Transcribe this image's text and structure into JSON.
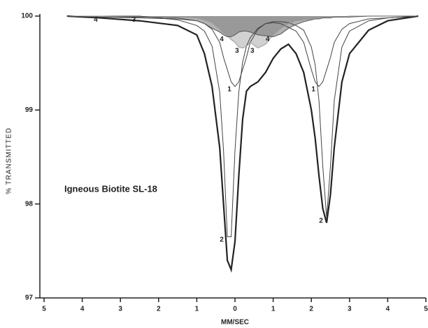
{
  "chart_data": {
    "type": "line",
    "annotation": "Igneous Biotite SL-18",
    "xlabel": "MM/SEC",
    "ylabel": "% TRANSMITTED",
    "x": [
      -4.4,
      -3.5,
      -2.5,
      -1.5,
      -1.0,
      -0.8,
      -0.6,
      -0.4,
      -0.3,
      -0.2,
      -0.1,
      0,
      0.1,
      0.2,
      0.3,
      0.4,
      0.6,
      0.8,
      1.0,
      1.2,
      1.4,
      1.6,
      1.8,
      2.0,
      2.1,
      2.2,
      2.3,
      2.4,
      2.5,
      2.6,
      2.8,
      3.0,
      3.5,
      4.0,
      4.8
    ],
    "series": [
      {
        "color": "#222222",
        "values": [
          100.0,
          99.98,
          99.95,
          99.9,
          99.8,
          99.6,
          99.25,
          98.6,
          98.0,
          97.4,
          97.3,
          97.6,
          98.3,
          98.9,
          99.2,
          99.25,
          99.3,
          99.4,
          99.55,
          99.65,
          99.7,
          99.6,
          99.4,
          99.0,
          98.7,
          98.3,
          97.95,
          97.8,
          98.1,
          98.6,
          99.3,
          99.6,
          99.85,
          99.95,
          100.0
        ]
      },
      {
        "name": "1",
        "color": "#444444",
        "values": [
          100.0,
          99.99,
          99.98,
          99.97,
          99.95,
          99.92,
          99.86,
          99.72,
          99.56,
          99.43,
          99.3,
          99.25,
          99.3,
          99.43,
          99.56,
          99.72,
          99.86,
          99.92,
          99.93,
          99.92,
          99.88,
          99.84,
          99.72,
          99.43,
          99.3,
          99.25,
          99.3,
          99.43,
          99.56,
          99.72,
          99.86,
          99.92,
          99.97,
          99.98,
          100.0
        ]
      },
      {
        "name": "2",
        "color": "#444444",
        "values": [
          100.0,
          100.0,
          100.0,
          99.96,
          99.9,
          99.84,
          99.68,
          99.19,
          98.57,
          97.65,
          97.65,
          98.57,
          99.19,
          99.51,
          99.68,
          99.77,
          99.87,
          99.92,
          99.94,
          99.94,
          99.93,
          99.9,
          99.85,
          99.67,
          99.48,
          99.1,
          98.4,
          97.85,
          98.4,
          99.1,
          99.67,
          99.84,
          99.95,
          99.98,
          100.0
        ]
      },
      {
        "name": "3",
        "color": "#9a9a9a",
        "values": [
          100.0,
          100.0,
          99.99,
          99.99,
          99.98,
          99.96,
          99.93,
          99.86,
          99.82,
          99.79,
          99.75,
          99.72,
          99.67,
          99.66,
          99.68,
          99.72,
          99.66,
          99.7,
          99.8,
          99.87,
          99.92,
          99.95,
          99.96,
          99.97,
          99.98,
          99.98,
          99.98,
          99.99,
          99.99,
          99.99,
          99.99,
          100.0,
          100.0,
          100.0,
          100.0
        ]
      },
      {
        "name": "4",
        "color": "#555555",
        "values": [
          100.0,
          99.99,
          99.99,
          99.98,
          99.95,
          99.92,
          99.87,
          99.83,
          99.8,
          99.78,
          99.78,
          99.8,
          99.83,
          99.84,
          99.84,
          99.83,
          99.8,
          99.79,
          99.78,
          99.81,
          99.87,
          99.91,
          99.94,
          99.96,
          99.97,
          99.97,
          99.98,
          99.98,
          99.98,
          99.99,
          99.99,
          99.99,
          100.0,
          100.0,
          100.0
        ]
      }
    ],
    "xlim": [
      -5,
      5
    ],
    "xticks": [
      {
        "value": -5,
        "label": "5"
      },
      {
        "value": -4,
        "label": "4"
      },
      {
        "value": -3,
        "label": "3"
      },
      {
        "value": -2,
        "label": "2"
      },
      {
        "value": -1,
        "label": "1"
      },
      0,
      1,
      2,
      3,
      4,
      5
    ],
    "ylim": [
      97,
      100
    ],
    "yticks": [
      97,
      98,
      99,
      100
    ]
  }
}
